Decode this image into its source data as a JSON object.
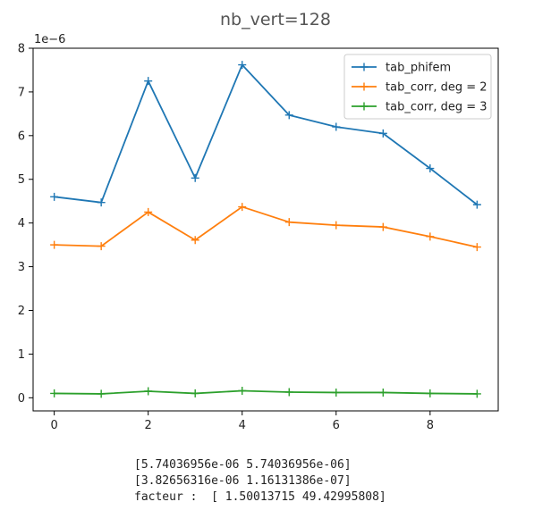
{
  "chart_data": {
    "type": "line",
    "title": "nb_vert=128",
    "y_offset_label": "1e−6",
    "x": [
      0,
      1,
      2,
      3,
      4,
      5,
      6,
      7,
      8,
      9
    ],
    "xlim": [
      -0.45,
      9.45
    ],
    "ylim": [
      -0.3,
      8
    ],
    "x_ticks": [
      0,
      2,
      4,
      6,
      8
    ],
    "y_ticks": [
      0,
      1,
      2,
      3,
      4,
      5,
      6,
      7,
      8
    ],
    "grid": false,
    "legend_position": "top-right",
    "marker": "plus",
    "series": [
      {
        "name": "tab_phifem",
        "color": "#1f77b4",
        "values": [
          4.6,
          4.47,
          7.25,
          5.03,
          7.62,
          6.47,
          6.2,
          6.05,
          5.25,
          4.42
        ]
      },
      {
        "name": "tab_corr, deg = 2",
        "color": "#ff7f0e",
        "values": [
          3.5,
          3.47,
          4.25,
          3.61,
          4.37,
          4.02,
          3.95,
          3.91,
          3.69,
          3.45
        ]
      },
      {
        "name": "tab_corr, deg = 3",
        "color": "#2ca02c",
        "values": [
          0.1,
          0.09,
          0.15,
          0.1,
          0.16,
          0.13,
          0.12,
          0.12,
          0.1,
          0.09
        ]
      }
    ]
  },
  "output_lines": [
    "[5.74036956e-06 5.74036956e-06]",
    "[3.82656316e-06 1.16131386e-07]",
    "facteur :  [ 1.50013715 49.42995808]"
  ]
}
